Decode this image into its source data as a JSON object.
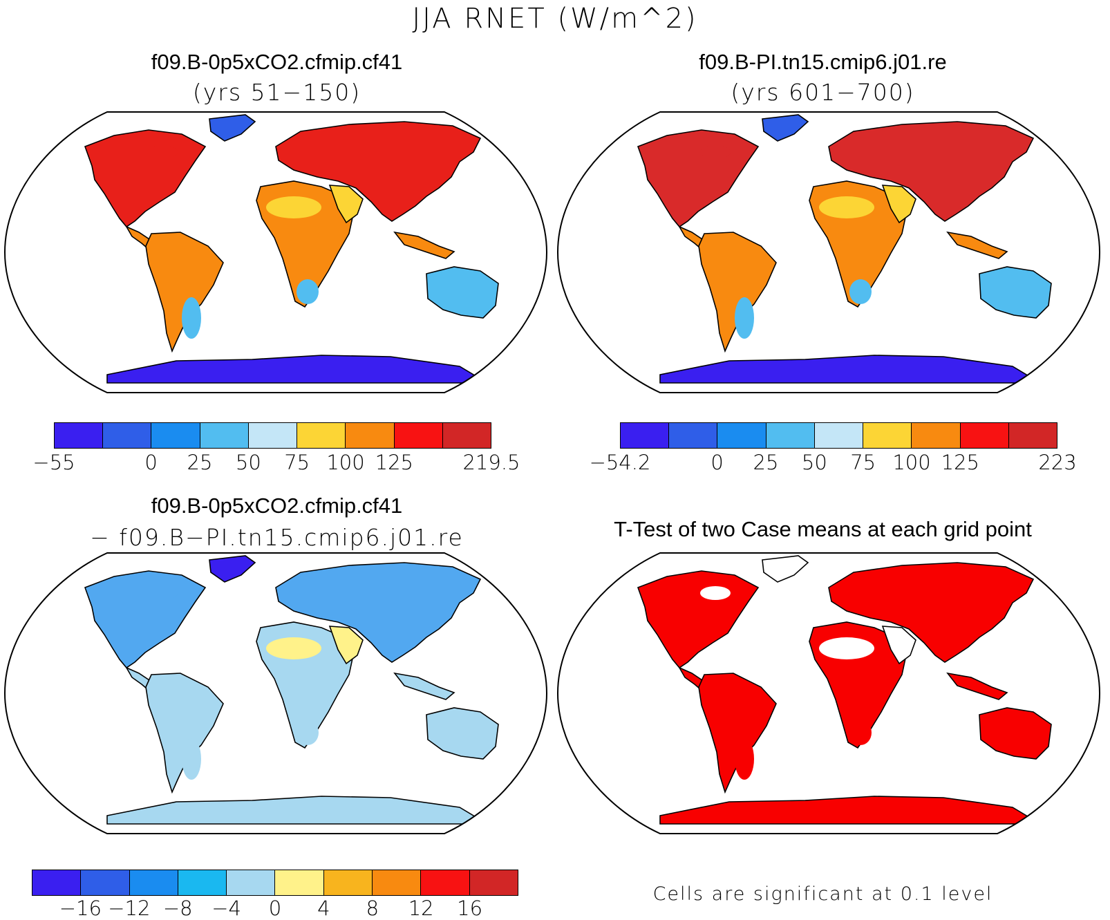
{
  "title": "JJA RNET (W/m^2)",
  "panels": [
    {
      "id": "tl",
      "title": "f09.B-0p5xCO2.cfmip.cf41",
      "subtitle": "(yrs 51−150)"
    },
    {
      "id": "tr",
      "title": "f09.B-PI.tn15.cmip6.j01.re",
      "subtitle": "(yrs 601−700)"
    },
    {
      "id": "bl",
      "title": "f09.B-0p5xCO2.cfmip.cf41",
      "subtitle": "− f09.B−PI.tn15.cmip6.j01.re"
    },
    {
      "id": "br",
      "title": "T-Test of two Case means at each grid point",
      "subtitle": ""
    }
  ],
  "colorbars": [
    {
      "id": "tl",
      "colors": [
        "#3a1ff0",
        "#2f5ee8",
        "#1a8cf0",
        "#52bdf0",
        "#c4e6f7",
        "#fcd535",
        "#f88a10",
        "#f81212",
        "#d22626"
      ],
      "labels": [
        "−55",
        "",
        "0",
        "25",
        "50",
        "75",
        "100",
        "125",
        "",
        "219.5"
      ]
    },
    {
      "id": "tr",
      "colors": [
        "#3a1ff0",
        "#2f5ee8",
        "#1a8cf0",
        "#52bdf0",
        "#c4e6f7",
        "#fcd535",
        "#f88a10",
        "#f81212",
        "#d22626"
      ],
      "labels": [
        "−54.2",
        "",
        "0",
        "25",
        "50",
        "75",
        "100",
        "125",
        "",
        "223"
      ]
    },
    {
      "id": "bl",
      "colors": [
        "#3a1ff0",
        "#2f5ee8",
        "#1a8cf0",
        "#1ab8f0",
        "#a7d8f0",
        "#fff28a",
        "#f8b41e",
        "#f88a10",
        "#f81212",
        "#d22626"
      ],
      "labels": [
        "",
        "−16",
        "−12",
        "−8",
        "−4",
        "0",
        "4",
        "8",
        "12",
        "16",
        ""
      ]
    }
  ],
  "note": "Cells are significant at 0.1 level",
  "map_fill": {
    "tl": {
      "north": "#e8201a",
      "tropics": "#f88a10",
      "desert": "#fcd535",
      "south": "#52bdf0",
      "antarctica": "#3a1ff0",
      "greenland": "#2f5ee8"
    },
    "tr": {
      "north": "#d92a2a",
      "tropics": "#f88a10",
      "desert": "#fcd535",
      "south": "#52bdf0",
      "antarctica": "#3a1ff0",
      "greenland": "#2f5ee8"
    },
    "bl": {
      "north": "#52a8f0",
      "tropics": "#a7d8f0",
      "desert": "#fff28a",
      "south": "#a7d8f0",
      "antarctica": "#a7d8f0",
      "greenland": "#3a1ff0"
    },
    "br": {
      "north": "#f80000",
      "tropics": "#f80000",
      "desert": "#ffffff",
      "south": "#f80000",
      "antarctica": "#f80000",
      "greenland": "#ffffff"
    }
  }
}
